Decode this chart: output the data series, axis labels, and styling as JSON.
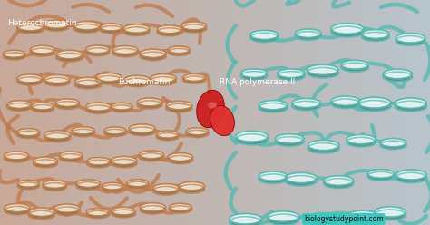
{
  "fig_width": 4.74,
  "fig_height": 2.48,
  "dpi": 100,
  "heterochromatin_label": "Heterochromatin",
  "euchromatin_label": "Euchromatin",
  "rna_pol_label": "RNA polymerase II",
  "watermark": "biologystudypoint.com",
  "bg_left_color": "#c8a898",
  "bg_right_color": "#b8c4cc",
  "bg_mid_color": "#c4b0b8",
  "left_strand_color": "#c07848",
  "left_nuc_top": "#e8ddc8",
  "left_nuc_rim": "#b89060",
  "left_nuc_shadow": "#807050",
  "right_strand_color": "#50b8b0",
  "right_nuc_top": "#e0f0ee",
  "right_nuc_rim": "#70b8b0",
  "right_nuc_shadow": "#508888",
  "right_nuc_mid": "#90d0cc",
  "rna_color1": "#cc2020",
  "rna_color2": "#e03030",
  "label_color": "#ffffff",
  "label_fontsize": 6.5,
  "watermark_bg": "#30c8c0",
  "watermark_color": "#000000",
  "watermark_fontsize": 5.5
}
